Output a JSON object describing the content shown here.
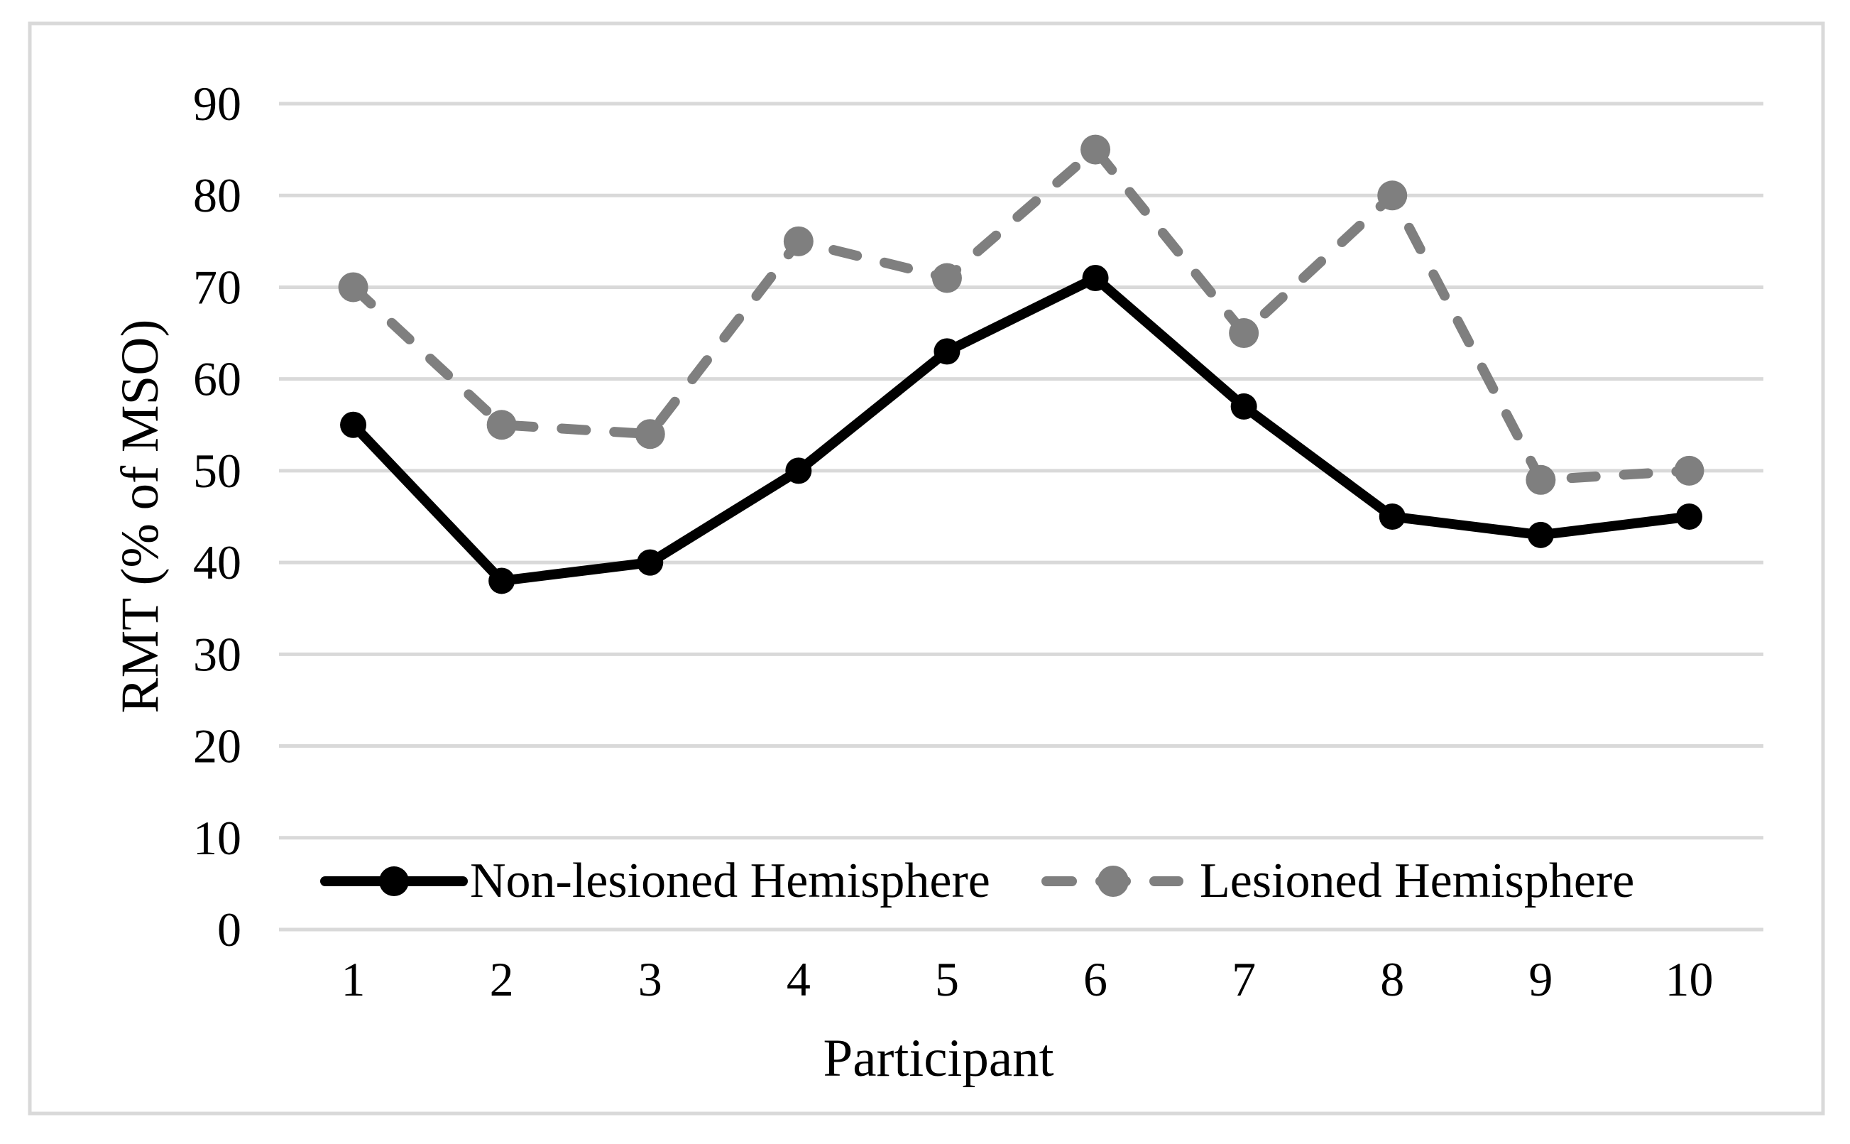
{
  "chart_data": {
    "type": "line",
    "title": "",
    "xlabel": "Participant",
    "ylabel": "RMT (% of MSO)",
    "categories": [
      "1",
      "2",
      "3",
      "4",
      "5",
      "6",
      "7",
      "8",
      "9",
      "10"
    ],
    "series": [
      {
        "name": "Non-lesioned Hemisphere",
        "values": [
          55,
          38,
          40,
          50,
          63,
          71,
          57,
          45,
          43,
          45
        ],
        "color": "#000000",
        "line_style": "solid",
        "marker": "circle",
        "marker_radius": 18.5
      },
      {
        "name": "Lesioned Hemisphere",
        "values": [
          70,
          55,
          54,
          75,
          71,
          85,
          65,
          80,
          49,
          50
        ],
        "color": "#7f7f7f",
        "line_style": "dashed",
        "marker": "circle",
        "marker_radius": 21
      }
    ],
    "ylim": [
      0,
      90
    ],
    "y_ticks": [
      0,
      10,
      20,
      30,
      40,
      50,
      60,
      70,
      80,
      90
    ],
    "grid": true,
    "legend_position": "bottom-inside"
  },
  "colors": {
    "gridline": "#d9d9d9",
    "figure_border": "#d9d9d9",
    "tick_label": "#000000",
    "axis_title": "#000000",
    "legend_text": "#898989",
    "background": "#ffffff"
  }
}
